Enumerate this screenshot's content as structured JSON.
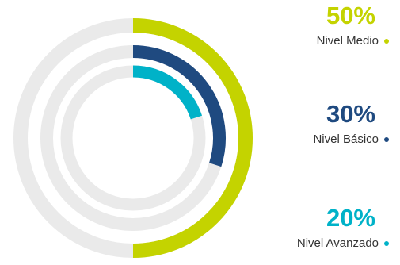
{
  "chart_data": {
    "type": "radial-bar",
    "track_color": "#eaeaea",
    "series": [
      {
        "name": "Nivel Medio",
        "value": 50,
        "value_label": "50%",
        "color": "#c4d300"
      },
      {
        "name": "Nivel Básico",
        "value": 30,
        "value_label": "30%",
        "color": "#1f4a80"
      },
      {
        "name": "Nivel Avanzado",
        "value": 20,
        "value_label": "20%",
        "color": "#00b2c8"
      }
    ]
  }
}
